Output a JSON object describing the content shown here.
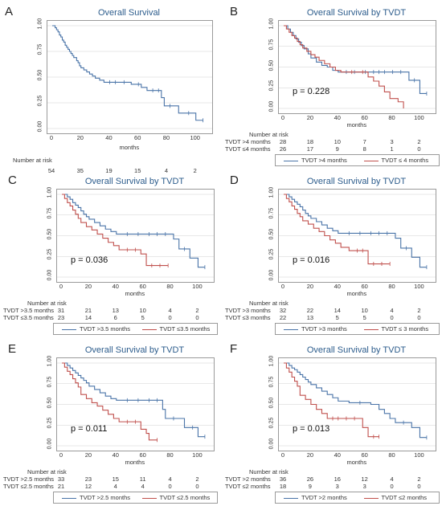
{
  "colors": {
    "blue": "#4a74a8",
    "red": "#c0504d",
    "grid": "#d0d0d0"
  },
  "chart_data": [
    {
      "type": "line",
      "panel": "A",
      "title": "Overall Survival",
      "xlabel": "months",
      "ylabel": "",
      "xlim": [
        0,
        108
      ],
      "ylim": [
        0,
        1
      ],
      "xticks": [
        "0",
        "20",
        "40",
        "60",
        "80",
        "100"
      ],
      "yticks": [
        "0.00",
        "0.25",
        "0.50",
        "0.75",
        "1.00"
      ],
      "pvalue": "",
      "series": [
        {
          "name": "",
          "color": "#4a74a8",
          "x": [
            0,
            2,
            3,
            4,
            5,
            6,
            7,
            8,
            9,
            10,
            11,
            12,
            13,
            14,
            15,
            17,
            18,
            19,
            20,
            22,
            24,
            26,
            28,
            30,
            33,
            36,
            40,
            44,
            50,
            55,
            60,
            62,
            66,
            70,
            74,
            76,
            78,
            82,
            88,
            95,
            100,
            105
          ],
          "y": [
            1.0,
            0.98,
            0.96,
            0.94,
            0.91,
            0.89,
            0.86,
            0.84,
            0.81,
            0.79,
            0.77,
            0.75,
            0.73,
            0.71,
            0.69,
            0.66,
            0.64,
            0.61,
            0.59,
            0.57,
            0.55,
            0.53,
            0.51,
            0.49,
            0.47,
            0.45,
            0.45,
            0.45,
            0.45,
            0.43,
            0.43,
            0.4,
            0.37,
            0.37,
            0.37,
            0.3,
            0.22,
            0.22,
            0.15,
            0.15,
            0.08,
            0.08
          ]
        }
      ],
      "risk_title": "Number at risk",
      "risk_rows": [
        {
          "name": "",
          "values": [
            "54",
            "35",
            "19",
            "15",
            "4",
            "2"
          ]
        }
      ]
    },
    {
      "type": "line",
      "panel": "B",
      "title": "Overall Survival by TVDT",
      "xlabel": "months",
      "ylabel": "",
      "xlim": [
        0,
        108
      ],
      "ylim": [
        0,
        1
      ],
      "xticks": [
        "0",
        "20",
        "40",
        "60",
        "80",
        "100"
      ],
      "yticks": [
        "0.00",
        "0.25",
        "0.50",
        "0.75",
        "1.00"
      ],
      "pvalue": "p = 0.228",
      "series": [
        {
          "name": "TVDT >4 months",
          "color": "#4a74a8",
          "x": [
            0,
            3,
            5,
            7,
            9,
            11,
            13,
            15,
            18,
            20,
            24,
            28,
            32,
            36,
            40,
            46,
            52,
            60,
            66,
            70,
            74,
            80,
            86,
            92,
            96,
            100,
            105
          ],
          "y": [
            1.0,
            0.96,
            0.92,
            0.88,
            0.84,
            0.8,
            0.76,
            0.72,
            0.66,
            0.61,
            0.56,
            0.52,
            0.5,
            0.46,
            0.44,
            0.44,
            0.44,
            0.44,
            0.44,
            0.44,
            0.44,
            0.44,
            0.44,
            0.34,
            0.34,
            0.18,
            0.18
          ]
        },
        {
          "name": "TVDT ≤ 4 months",
          "color": "#c0504d",
          "x": [
            0,
            2,
            4,
            6,
            8,
            10,
            12,
            14,
            17,
            20,
            23,
            26,
            30,
            34,
            38,
            42,
            50,
            58,
            62,
            66,
            70,
            74,
            78,
            84,
            88
          ],
          "y": [
            1.0,
            0.96,
            0.92,
            0.88,
            0.85,
            0.81,
            0.77,
            0.73,
            0.69,
            0.65,
            0.62,
            0.58,
            0.54,
            0.5,
            0.46,
            0.44,
            0.44,
            0.44,
            0.38,
            0.33,
            0.27,
            0.2,
            0.12,
            0.08,
            0.0
          ]
        }
      ],
      "risk_title": "Number at risk",
      "risk_rows": [
        {
          "name": "TVDT >4 months",
          "values": [
            "28",
            "18",
            "10",
            "7",
            "3",
            "2"
          ]
        },
        {
          "name": "TVDT ≤4 months",
          "values": [
            "26",
            "17",
            "9",
            "8",
            "1",
            "0"
          ]
        }
      ],
      "legend": [
        "TVDT >4 months",
        "TVDT ≤ 4 months"
      ]
    },
    {
      "type": "line",
      "panel": "C",
      "title": "Overall Survival by TVDT",
      "xlabel": "months",
      "ylabel": "",
      "xlim": [
        0,
        108
      ],
      "ylim": [
        0,
        1
      ],
      "xticks": [
        "0",
        "20",
        "40",
        "60",
        "80",
        "100"
      ],
      "yticks": [
        "0.00",
        "0.25",
        "0.50",
        "0.75",
        "1.00"
      ],
      "pvalue": "p = 0.036",
      "series": [
        {
          "name": "TVDT >3.5 months",
          "color": "#4a74a8",
          "x": [
            0,
            4,
            6,
            8,
            10,
            12,
            14,
            16,
            18,
            20,
            24,
            28,
            32,
            36,
            40,
            48,
            56,
            64,
            70,
            76,
            82,
            86,
            90,
            94,
            100,
            105
          ],
          "y": [
            1.0,
            0.97,
            0.94,
            0.9,
            0.87,
            0.84,
            0.8,
            0.76,
            0.73,
            0.7,
            0.66,
            0.62,
            0.58,
            0.55,
            0.52,
            0.52,
            0.52,
            0.52,
            0.52,
            0.52,
            0.46,
            0.34,
            0.34,
            0.23,
            0.12,
            0.12
          ]
        },
        {
          "name": "TVDT ≤3.5 months",
          "color": "#c0504d",
          "x": [
            0,
            2,
            4,
            6,
            8,
            10,
            12,
            14,
            18,
            22,
            26,
            30,
            34,
            38,
            42,
            48,
            54,
            58,
            62,
            66,
            72,
            78
          ],
          "y": [
            1.0,
            0.95,
            0.9,
            0.86,
            0.81,
            0.76,
            0.71,
            0.66,
            0.61,
            0.57,
            0.52,
            0.47,
            0.42,
            0.38,
            0.33,
            0.33,
            0.33,
            0.28,
            0.14,
            0.14,
            0.14,
            0.14
          ]
        }
      ],
      "risk_title": "Number at risk",
      "risk_rows": [
        {
          "name": "TVDT >3.5 months",
          "values": [
            "31",
            "21",
            "13",
            "10",
            "4",
            "2"
          ]
        },
        {
          "name": "TVDT ≤3.5 months",
          "values": [
            "23",
            "14",
            "6",
            "5",
            "0",
            "0"
          ]
        }
      ],
      "legend": [
        "TVDT >3.5 months",
        "TVDT ≤3.5 months"
      ]
    },
    {
      "type": "line",
      "panel": "D",
      "title": "Overall Survival by TVDT",
      "xlabel": "months",
      "ylabel": "",
      "xlim": [
        0,
        108
      ],
      "ylim": [
        0,
        1
      ],
      "xticks": [
        "0",
        "20",
        "40",
        "60",
        "80",
        "100"
      ],
      "yticks": [
        "0.00",
        "0.25",
        "0.50",
        "0.75",
        "1.00"
      ],
      "pvalue": "p = 0.016",
      "series": [
        {
          "name": "TVDT >3 months",
          "color": "#4a74a8",
          "x": [
            0,
            4,
            6,
            8,
            10,
            12,
            14,
            16,
            18,
            20,
            24,
            28,
            32,
            36,
            40,
            48,
            56,
            64,
            70,
            76,
            82,
            86,
            90,
            94,
            100,
            105
          ],
          "y": [
            1.0,
            0.97,
            0.94,
            0.91,
            0.88,
            0.85,
            0.81,
            0.77,
            0.74,
            0.71,
            0.67,
            0.63,
            0.59,
            0.56,
            0.53,
            0.53,
            0.53,
            0.53,
            0.53,
            0.53,
            0.47,
            0.35,
            0.35,
            0.24,
            0.12,
            0.12
          ]
        },
        {
          "name": "TVDT ≤ 3 months",
          "color": "#c0504d",
          "x": [
            0,
            2,
            4,
            6,
            8,
            10,
            12,
            14,
            18,
            22,
            26,
            30,
            34,
            38,
            42,
            48,
            54,
            58,
            62,
            66,
            72,
            78
          ],
          "y": [
            1.0,
            0.95,
            0.91,
            0.86,
            0.82,
            0.77,
            0.73,
            0.68,
            0.64,
            0.59,
            0.55,
            0.5,
            0.45,
            0.41,
            0.36,
            0.32,
            0.32,
            0.32,
            0.16,
            0.16,
            0.16,
            0.16
          ]
        }
      ],
      "risk_title": "Number at risk",
      "risk_rows": [
        {
          "name": "TVDT >3 months",
          "values": [
            "32",
            "22",
            "14",
            "10",
            "4",
            "2"
          ]
        },
        {
          "name": "TVDT ≤3 months",
          "values": [
            "22",
            "13",
            "5",
            "5",
            "0",
            "0"
          ]
        }
      ],
      "legend": [
        "TVDT >3 months",
        "TVDT ≤ 3 months"
      ]
    },
    {
      "type": "line",
      "panel": "E",
      "title": "Overall Survival by TVDT",
      "xlabel": "months",
      "ylabel": "",
      "xlim": [
        0,
        108
      ],
      "ylim": [
        0,
        1
      ],
      "xticks": [
        "0",
        "20",
        "40",
        "60",
        "80",
        "100"
      ],
      "yticks": [
        "0.00",
        "0.25",
        "0.50",
        "0.75",
        "1.00"
      ],
      "pvalue": "p = 0.011",
      "series": [
        {
          "name": "TVDT >2.5 months",
          "color": "#4a74a8",
          "x": [
            0,
            4,
            6,
            8,
            10,
            12,
            14,
            16,
            18,
            20,
            24,
            28,
            32,
            36,
            40,
            48,
            56,
            64,
            70,
            74,
            76,
            82,
            90,
            96,
            100,
            105
          ],
          "y": [
            1.0,
            0.97,
            0.94,
            0.91,
            0.88,
            0.85,
            0.82,
            0.79,
            0.76,
            0.72,
            0.68,
            0.64,
            0.6,
            0.57,
            0.55,
            0.55,
            0.55,
            0.55,
            0.55,
            0.44,
            0.33,
            0.33,
            0.22,
            0.22,
            0.11,
            0.11
          ]
        },
        {
          "name": "TVDT ≤2.5 months",
          "color": "#c0504d",
          "x": [
            0,
            2,
            4,
            6,
            8,
            10,
            12,
            14,
            18,
            22,
            26,
            30,
            34,
            38,
            42,
            48,
            54,
            58,
            62,
            64,
            70
          ],
          "y": [
            1.0,
            0.95,
            0.9,
            0.86,
            0.81,
            0.76,
            0.71,
            0.62,
            0.57,
            0.52,
            0.48,
            0.43,
            0.38,
            0.33,
            0.29,
            0.29,
            0.29,
            0.2,
            0.15,
            0.07,
            0.07
          ]
        }
      ],
      "risk_title": "Number at risk",
      "risk_rows": [
        {
          "name": "TVDT >2.5 months",
          "values": [
            "33",
            "23",
            "15",
            "11",
            "4",
            "2"
          ]
        },
        {
          "name": "TVDT ≤2.5 months",
          "values": [
            "21",
            "12",
            "4",
            "4",
            "0",
            "0"
          ]
        }
      ],
      "legend": [
        "TVDT >2.5 months",
        "TVDT ≤2.5 months"
      ]
    },
    {
      "type": "line",
      "panel": "F",
      "title": "Overall Survival by TVDT",
      "xlabel": "months",
      "ylabel": "",
      "xlim": [
        0,
        108
      ],
      "ylim": [
        0,
        1
      ],
      "xticks": [
        "0",
        "20",
        "40",
        "60",
        "80",
        "100"
      ],
      "yticks": [
        "0.00",
        "0.25",
        "0.50",
        "0.75",
        "1.00"
      ],
      "pvalue": "p = 0.013",
      "series": [
        {
          "name": "TVDT >2 months",
          "color": "#4a74a8",
          "x": [
            0,
            4,
            6,
            8,
            10,
            12,
            14,
            16,
            18,
            20,
            24,
            28,
            32,
            36,
            40,
            48,
            56,
            64,
            70,
            74,
            78,
            82,
            88,
            94,
            100,
            105
          ],
          "y": [
            1.0,
            0.97,
            0.94,
            0.92,
            0.89,
            0.86,
            0.83,
            0.8,
            0.77,
            0.74,
            0.7,
            0.66,
            0.62,
            0.58,
            0.54,
            0.52,
            0.52,
            0.5,
            0.44,
            0.39,
            0.33,
            0.28,
            0.28,
            0.22,
            0.1,
            0.1
          ]
        },
        {
          "name": "TVDT ≤2 months",
          "color": "#c0504d",
          "x": [
            0,
            2,
            4,
            6,
            8,
            10,
            12,
            16,
            20,
            24,
            28,
            32,
            36,
            40,
            46,
            52,
            58,
            62,
            66,
            70
          ],
          "y": [
            1.0,
            0.94,
            0.89,
            0.83,
            0.78,
            0.72,
            0.61,
            0.56,
            0.5,
            0.44,
            0.39,
            0.33,
            0.33,
            0.33,
            0.33,
            0.33,
            0.22,
            0.11,
            0.11,
            0.11
          ]
        }
      ],
      "risk_title": "Number at risk",
      "risk_rows": [
        {
          "name": "TVDT >2 months",
          "values": [
            "36",
            "26",
            "16",
            "12",
            "4",
            "2"
          ]
        },
        {
          "name": "TVDT ≤2 months",
          "values": [
            "18",
            "9",
            "3",
            "3",
            "0",
            "0"
          ]
        }
      ],
      "legend": [
        "TVDT >2 months",
        "TVDT ≤2 months"
      ]
    }
  ]
}
